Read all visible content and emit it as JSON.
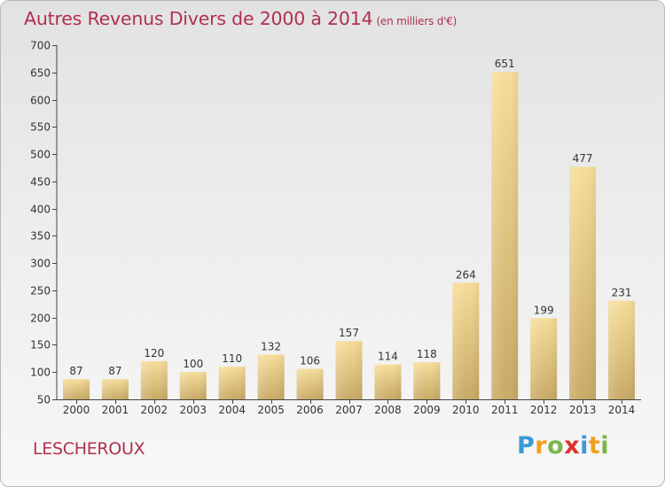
{
  "title": {
    "main": "Autres Revenus Divers de 2000 à 2014",
    "unit": "(en milliers d'€)"
  },
  "place_name": "LESCHEROUX",
  "logo": {
    "letters": [
      "P",
      "r",
      "o",
      "x",
      "i",
      "t",
      "i"
    ],
    "colors": [
      "#3a9ad9",
      "#f0a020",
      "#7ab648",
      "#e03030",
      "#3a9ad9",
      "#f0a020",
      "#7ab648"
    ]
  },
  "chart_data": {
    "type": "bar",
    "categories": [
      "2000",
      "2001",
      "2002",
      "2003",
      "2004",
      "2005",
      "2006",
      "2007",
      "2008",
      "2009",
      "2010",
      "2011",
      "2012",
      "2013",
      "2014"
    ],
    "values": [
      87,
      87,
      120,
      100,
      110,
      132,
      106,
      157,
      114,
      118,
      264,
      651,
      199,
      477,
      231
    ],
    "data_labels": [
      "87",
      "87",
      "120",
      "100",
      "110",
      "132",
      "106",
      "157",
      "114",
      "118",
      "264",
      "651",
      "199",
      "477",
      "231"
    ],
    "y_ticks": [
      50,
      100,
      150,
      200,
      250,
      300,
      350,
      400,
      450,
      500,
      550,
      600,
      650,
      700
    ],
    "ylim": [
      50,
      700
    ],
    "grid": false,
    "bar_color": "#e8cc88"
  }
}
